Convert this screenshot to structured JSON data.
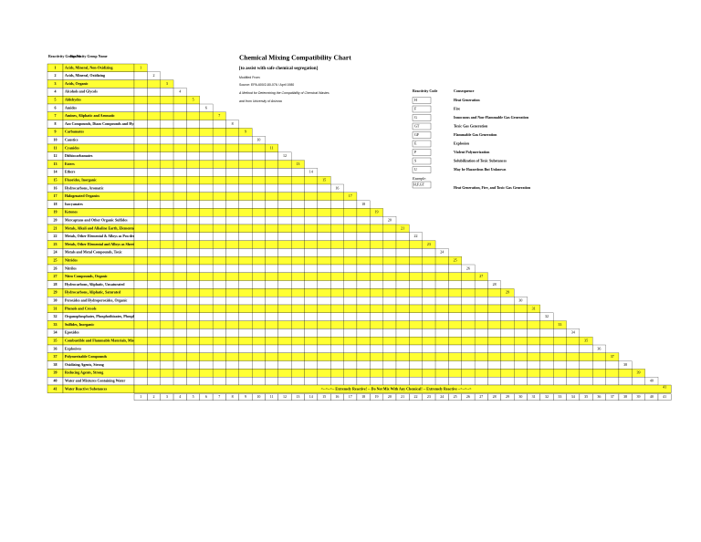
{
  "header": {
    "group_no": "Reactivity Group No.",
    "group_name": "Reactivity Group Name"
  },
  "title": "Chemical Mixing Compatibility Chart",
  "subtitle": "[to assist with safe chemical segregation]",
  "source": {
    "modified": "Modified From:",
    "citation": "Source: EPA-600/2-80-076 / April 1980",
    "method": "A Method for Determining the Compatibility of Chemical Wastes",
    "other": "and from University of Arizona"
  },
  "legend": {
    "code_header": "Reactivity Code",
    "consequence_header": "Consequence",
    "items": [
      {
        "code": "H",
        "text": "Heat Generation"
      },
      {
        "code": "F",
        "text": "Fire"
      },
      {
        "code": "G",
        "text": "Innocuous and Non-Flammable Gas Generation"
      },
      {
        "code": "GT",
        "text": "Toxic Gas Generation"
      },
      {
        "code": "GF",
        "text": "Flammable Gas Generation"
      },
      {
        "code": "E",
        "text": "Explosion"
      },
      {
        "code": "P",
        "text": "Violent Polymerization"
      },
      {
        "code": "S",
        "text": "Solubilization of Toxic Substances"
      },
      {
        "code": "U",
        "text": "May be Hazardous But Unknown"
      }
    ],
    "example_label": "Example:",
    "example_code": "H,F,GT",
    "example_text": "Heat Generation, Fire, and Toxic Gas Generation"
  },
  "water_reactive_note": "<--<--<-- Extremely Reactive! -- Do Not Mix With Any Chemical! -- Extremely Reactive -->-->-->",
  "groups": [
    {
      "number": 1,
      "name": "Acids, Mineral, Non-Oxidizing"
    },
    {
      "number": 2,
      "name": "Acids, Mineral, Oxidizing"
    },
    {
      "number": 3,
      "name": "Acids, Organic"
    },
    {
      "number": 4,
      "name": "Alcohols and Glycols"
    },
    {
      "number": 5,
      "name": "Aldehydes"
    },
    {
      "number": 6,
      "name": "Amides"
    },
    {
      "number": 7,
      "name": "Amines, Aliphatic and Aromatic"
    },
    {
      "number": 8,
      "name": "Azo Compounds, Diazo Compounds and Hydrazines"
    },
    {
      "number": 9,
      "name": "Carbamates"
    },
    {
      "number": 10,
      "name": "Caustics"
    },
    {
      "number": 11,
      "name": "Cyanides"
    },
    {
      "number": 12,
      "name": "Dithiocarbamates"
    },
    {
      "number": 13,
      "name": "Esters"
    },
    {
      "number": 14,
      "name": "Ethers"
    },
    {
      "number": 15,
      "name": "Fluorides, Inorganic"
    },
    {
      "number": 16,
      "name": "Hydrocarbons, Aromatic"
    },
    {
      "number": 17,
      "name": "Halogenated Organics"
    },
    {
      "number": 18,
      "name": "Isocyanates"
    },
    {
      "number": 19,
      "name": "Ketones"
    },
    {
      "number": 20,
      "name": "Mercaptans and Other Organic Sulfides"
    },
    {
      "number": 21,
      "name": "Metals, Alkali and Alkaline Earth, Elemental"
    },
    {
      "number": 22,
      "name": "Metals, Other Elemental & Alloys as Powders, Vapors, or Sponges"
    },
    {
      "number": 23,
      "name": "Metals, Other Elemental and Alloys as Sheets, Rods, Moldings, Etc."
    },
    {
      "number": 24,
      "name": "Metals and Metal Compounds, Toxic"
    },
    {
      "number": 25,
      "name": "Nitrides"
    },
    {
      "number": 26,
      "name": "Nitriles"
    },
    {
      "number": 27,
      "name": "Nitro Compounds, Organic"
    },
    {
      "number": 28,
      "name": "Hydrocarbons, Aliphatic, Unsaturated"
    },
    {
      "number": 29,
      "name": "Hydrocarbons, Aliphatic, Saturated"
    },
    {
      "number": 30,
      "name": "Peroxides and Hydroperoxides, Organic"
    },
    {
      "number": 31,
      "name": "Phenols and Cresols"
    },
    {
      "number": 32,
      "name": "Organophosphates, Phosphothioates, Phosphodithioates"
    },
    {
      "number": 33,
      "name": "Sulfides, Inorganic"
    },
    {
      "number": 34,
      "name": "Epoxides"
    },
    {
      "number": 35,
      "name": "Combustible and Flammable Materials, Miscellaneous"
    },
    {
      "number": 36,
      "name": "Explosives"
    },
    {
      "number": 37,
      "name": "Polymerizable Compounds"
    },
    {
      "number": 38,
      "name": "Oxidizing Agents, Strong"
    },
    {
      "number": 39,
      "name": "Reducing Agents, Strong"
    },
    {
      "number": 40,
      "name": "Water and Mixtures Containing Water"
    },
    {
      "number": 41,
      "name": "Water Reactive Substances"
    }
  ]
}
